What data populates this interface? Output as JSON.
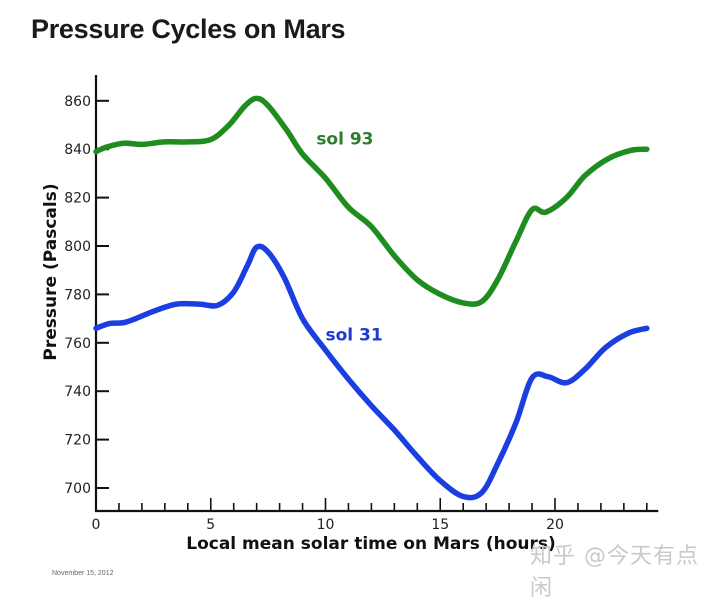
{
  "page": {
    "title": "Pressure Cycles on Mars",
    "footnote": "November 15, 2012",
    "watermark": "知乎 @今天有点闲"
  },
  "chart_data": {
    "type": "line",
    "title": "Pressure Cycles on Mars",
    "xlabel": "Local mean solar time on Mars (hours)",
    "ylabel": "Pressure (Pascals)",
    "xlim": [
      0,
      24.5
    ],
    "ylim": [
      690,
      870
    ],
    "x_ticks_major": [
      0,
      5,
      10,
      15,
      20
    ],
    "x_ticks_minor_step": 1,
    "y_ticks": [
      700,
      720,
      740,
      760,
      780,
      800,
      820,
      840,
      860
    ],
    "grid": false,
    "legend": "inline labels",
    "series": [
      {
        "name": "sol 93",
        "color": "#1e8c1e",
        "label_color": "#2e7d2e",
        "points": [
          [
            0,
            839
          ],
          [
            0.5,
            841
          ],
          [
            1.2,
            842.5
          ],
          [
            2,
            842
          ],
          [
            3,
            843
          ],
          [
            4,
            843
          ],
          [
            5,
            844
          ],
          [
            5.8,
            850
          ],
          [
            6.5,
            858
          ],
          [
            7,
            861
          ],
          [
            7.5,
            858
          ],
          [
            8.3,
            848
          ],
          [
            9,
            838
          ],
          [
            10,
            828
          ],
          [
            11,
            816
          ],
          [
            12,
            808
          ],
          [
            13,
            796
          ],
          [
            14,
            786
          ],
          [
            15,
            780
          ],
          [
            16,
            776.5
          ],
          [
            16.8,
            777
          ],
          [
            17.5,
            786
          ],
          [
            18.3,
            802
          ],
          [
            19,
            815
          ],
          [
            19.6,
            814
          ],
          [
            20.5,
            820
          ],
          [
            21.3,
            829
          ],
          [
            22.3,
            836
          ],
          [
            23.3,
            839.5
          ],
          [
            24,
            840
          ]
        ]
      },
      {
        "name": "sol 31",
        "color": "#1a3ee0",
        "label_color": "#1d3ad4",
        "points": [
          [
            0,
            766
          ],
          [
            0.6,
            768
          ],
          [
            1.3,
            768.5
          ],
          [
            2.5,
            773
          ],
          [
            3.5,
            776
          ],
          [
            4.5,
            776
          ],
          [
            5.3,
            775.5
          ],
          [
            6,
            781
          ],
          [
            6.6,
            792
          ],
          [
            7,
            799.5
          ],
          [
            7.5,
            797.5
          ],
          [
            8.2,
            787
          ],
          [
            9,
            770
          ],
          [
            10,
            757
          ],
          [
            11,
            745
          ],
          [
            12,
            734
          ],
          [
            13,
            724
          ],
          [
            14,
            713
          ],
          [
            15,
            703
          ],
          [
            16,
            696.5
          ],
          [
            16.8,
            698
          ],
          [
            17.5,
            710
          ],
          [
            18.3,
            727
          ],
          [
            19,
            745.5
          ],
          [
            19.7,
            746
          ],
          [
            20.5,
            743.5
          ],
          [
            21.3,
            749
          ],
          [
            22.2,
            758
          ],
          [
            23.2,
            764
          ],
          [
            24,
            766
          ]
        ]
      }
    ],
    "annotations": [
      {
        "text": "sol 93",
        "x": 9.6,
        "y": 842
      },
      {
        "text": "sol 31",
        "x": 10,
        "y": 761
      }
    ]
  }
}
